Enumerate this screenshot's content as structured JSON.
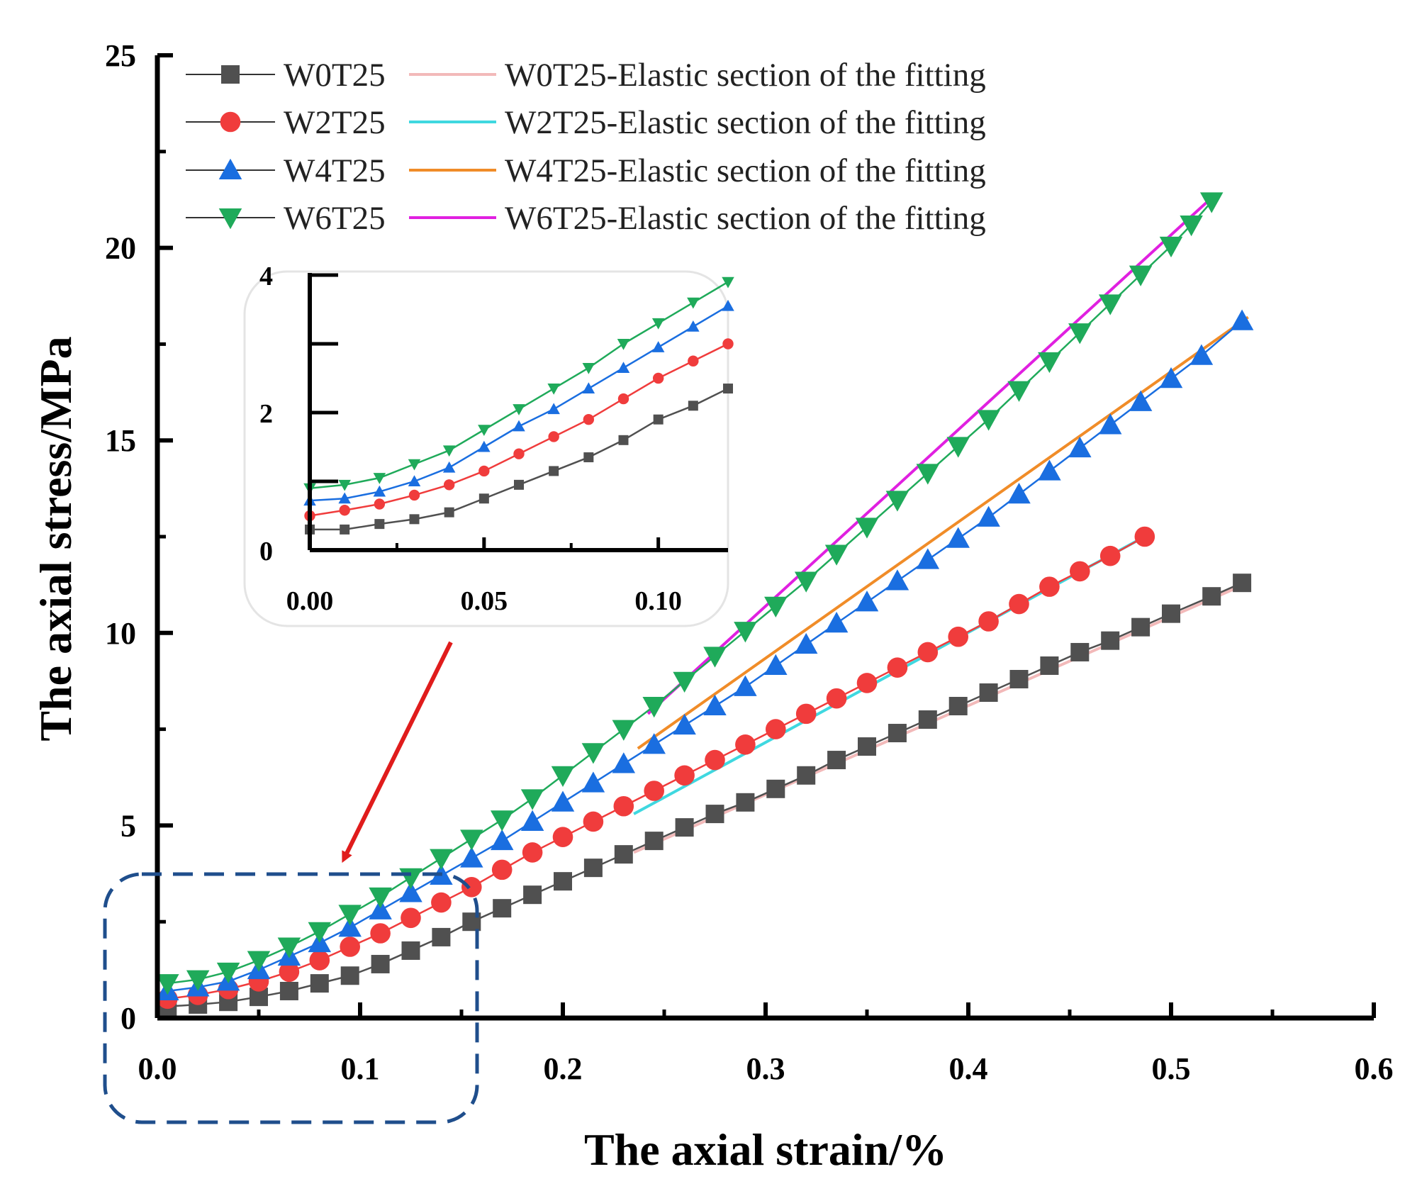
{
  "chart_data": {
    "type": "scatter",
    "xlabel": "The axial strain/%",
    "ylabel": "The axial stress/MPa",
    "xlim": [
      0,
      0.6
    ],
    "ylim": [
      0,
      25
    ],
    "x_ticks": [
      "0.0",
      "0.1",
      "0.2",
      "0.3",
      "0.4",
      "0.5",
      "0.6"
    ],
    "y_ticks": [
      "0",
      "5",
      "10",
      "15",
      "20",
      "25"
    ],
    "series": [
      {
        "name": "W0T25",
        "marker": "square",
        "color": "#505050",
        "x": [
          0.005,
          0.02,
          0.035,
          0.05,
          0.065,
          0.08,
          0.095,
          0.11,
          0.125,
          0.14,
          0.155,
          0.17,
          0.185,
          0.2,
          0.215,
          0.23,
          0.245,
          0.26,
          0.275,
          0.29,
          0.305,
          0.32,
          0.335,
          0.35,
          0.365,
          0.38,
          0.395,
          0.41,
          0.425,
          0.44,
          0.455,
          0.47,
          0.485,
          0.5,
          0.52,
          0.535
        ],
        "y": [
          0.3,
          0.35,
          0.42,
          0.55,
          0.7,
          0.9,
          1.1,
          1.4,
          1.75,
          2.1,
          2.5,
          2.85,
          3.2,
          3.55,
          3.9,
          4.25,
          4.6,
          4.95,
          5.3,
          5.6,
          5.95,
          6.3,
          6.7,
          7.05,
          7.4,
          7.75,
          8.1,
          8.45,
          8.8,
          9.15,
          9.5,
          9.8,
          10.15,
          10.5,
          10.95,
          11.3
        ]
      },
      {
        "name": "W2T25",
        "marker": "circle",
        "color": "#f03c3c",
        "x": [
          0.005,
          0.02,
          0.035,
          0.05,
          0.065,
          0.08,
          0.095,
          0.11,
          0.125,
          0.14,
          0.155,
          0.17,
          0.185,
          0.2,
          0.215,
          0.23,
          0.245,
          0.26,
          0.275,
          0.29,
          0.305,
          0.32,
          0.335,
          0.35,
          0.365,
          0.38,
          0.395,
          0.41,
          0.425,
          0.44,
          0.455,
          0.47,
          0.487
        ],
        "y": [
          0.5,
          0.6,
          0.75,
          0.95,
          1.2,
          1.5,
          1.85,
          2.2,
          2.6,
          3.0,
          3.4,
          3.85,
          4.3,
          4.7,
          5.1,
          5.5,
          5.9,
          6.3,
          6.7,
          7.1,
          7.5,
          7.9,
          8.3,
          8.7,
          9.1,
          9.5,
          9.9,
          10.3,
          10.75,
          11.2,
          11.6,
          12.0,
          12.5
        ]
      },
      {
        "name": "W4T25",
        "marker": "triangle-up",
        "color": "#1a6ee0",
        "x": [
          0.005,
          0.02,
          0.035,
          0.05,
          0.065,
          0.08,
          0.095,
          0.11,
          0.125,
          0.14,
          0.155,
          0.17,
          0.185,
          0.2,
          0.215,
          0.23,
          0.245,
          0.26,
          0.275,
          0.29,
          0.305,
          0.32,
          0.335,
          0.35,
          0.365,
          0.38,
          0.395,
          0.41,
          0.425,
          0.44,
          0.455,
          0.47,
          0.485,
          0.5,
          0.515,
          0.535
        ],
        "y": [
          0.7,
          0.8,
          0.95,
          1.25,
          1.6,
          1.95,
          2.35,
          2.8,
          3.25,
          3.7,
          4.15,
          4.6,
          5.1,
          5.6,
          6.1,
          6.6,
          7.1,
          7.6,
          8.1,
          8.6,
          9.15,
          9.7,
          10.25,
          10.8,
          11.35,
          11.9,
          12.45,
          13.0,
          13.6,
          14.2,
          14.8,
          15.4,
          16.0,
          16.6,
          17.2,
          18.1
        ]
      },
      {
        "name": "W6T25",
        "marker": "triangle-down",
        "color": "#1faa5a",
        "x": [
          0.005,
          0.02,
          0.035,
          0.05,
          0.065,
          0.08,
          0.095,
          0.11,
          0.125,
          0.14,
          0.155,
          0.17,
          0.185,
          0.2,
          0.215,
          0.23,
          0.245,
          0.26,
          0.275,
          0.29,
          0.305,
          0.32,
          0.335,
          0.35,
          0.365,
          0.38,
          0.395,
          0.41,
          0.425,
          0.44,
          0.455,
          0.47,
          0.485,
          0.5,
          0.51,
          0.52
        ],
        "y": [
          0.9,
          1.0,
          1.2,
          1.5,
          1.85,
          2.25,
          2.7,
          3.15,
          3.65,
          4.15,
          4.65,
          5.15,
          5.7,
          6.3,
          6.9,
          7.5,
          8.1,
          8.75,
          9.4,
          10.05,
          10.7,
          11.35,
          12.05,
          12.75,
          13.45,
          14.15,
          14.85,
          15.55,
          16.3,
          17.05,
          17.8,
          18.55,
          19.3,
          20.05,
          20.6,
          21.2
        ]
      }
    ],
    "fits": [
      {
        "name": "W0T25-Elastic section of the fitting",
        "color": "#f2b9b9",
        "x": [
          0.235,
          0.538
        ],
        "y": [
          4.3,
          11.3
        ]
      },
      {
        "name": "W2T25-Elastic section of the fitting",
        "color": "#3fd8e0",
        "x": [
          0.235,
          0.487
        ],
        "y": [
          5.3,
          12.5
        ]
      },
      {
        "name": "W4T25-Elastic section of the fitting",
        "color": "#f08c28",
        "x": [
          0.237,
          0.538
        ],
        "y": [
          7.0,
          18.2
        ]
      },
      {
        "name": "W6T25-Elastic section of the fitting",
        "color": "#e020e0",
        "x": [
          0.242,
          0.52
        ],
        "y": [
          7.9,
          21.3
        ]
      }
    ],
    "inset": {
      "xlim": [
        0,
        0.12
      ],
      "ylim": [
        0,
        4
      ],
      "x_ticks": [
        "0.00",
        "0.05",
        "0.10"
      ],
      "y_ticks": [
        "0",
        "2",
        "4"
      ],
      "series": [
        {
          "name": "W0T25",
          "x": [
            0.0,
            0.01,
            0.02,
            0.03,
            0.04,
            0.05,
            0.06,
            0.07,
            0.08,
            0.09,
            0.1,
            0.11,
            0.12
          ],
          "y": [
            0.3,
            0.3,
            0.38,
            0.45,
            0.55,
            0.75,
            0.95,
            1.15,
            1.35,
            1.6,
            1.9,
            2.1,
            2.35
          ]
        },
        {
          "name": "W2T25",
          "x": [
            0.0,
            0.01,
            0.02,
            0.03,
            0.04,
            0.05,
            0.06,
            0.07,
            0.08,
            0.09,
            0.1,
            0.11,
            0.12
          ],
          "y": [
            0.5,
            0.58,
            0.67,
            0.8,
            0.95,
            1.15,
            1.4,
            1.65,
            1.9,
            2.2,
            2.5,
            2.75,
            3.0
          ]
        },
        {
          "name": "W4T25",
          "x": [
            0.0,
            0.01,
            0.02,
            0.03,
            0.04,
            0.05,
            0.06,
            0.07,
            0.08,
            0.09,
            0.1,
            0.11,
            0.12
          ],
          "y": [
            0.72,
            0.75,
            0.85,
            1.0,
            1.2,
            1.5,
            1.8,
            2.05,
            2.35,
            2.65,
            2.95,
            3.25,
            3.55
          ]
        },
        {
          "name": "W6T25",
          "x": [
            0.0,
            0.01,
            0.02,
            0.03,
            0.04,
            0.05,
            0.06,
            0.07,
            0.08,
            0.09,
            0.1,
            0.11,
            0.12
          ],
          "y": [
            0.9,
            0.95,
            1.05,
            1.25,
            1.45,
            1.75,
            2.05,
            2.35,
            2.65,
            3.0,
            3.3,
            3.6,
            3.9
          ]
        }
      ]
    },
    "annotations": {
      "zoom_box": "dashed box around 0-0.15 strain region",
      "arrow": "red arrow from inset to zoom box"
    }
  }
}
